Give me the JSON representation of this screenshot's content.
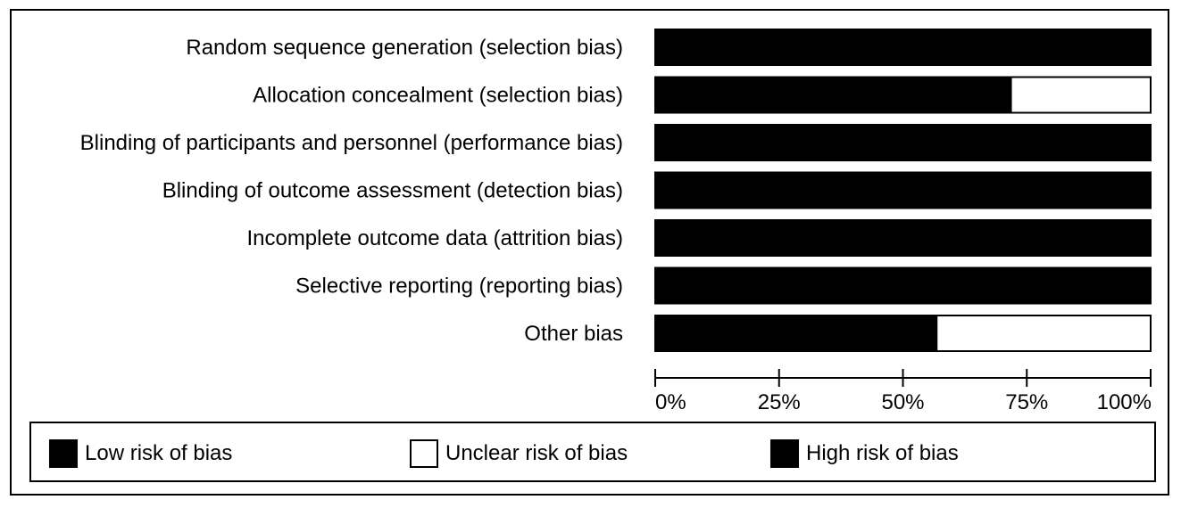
{
  "chart_data": {
    "type": "bar",
    "orientation": "horizontal",
    "stacked": true,
    "categories": [
      "Random sequence generation (selection bias)",
      "Allocation concealment (selection bias)",
      "Blinding of participants and personnel (performance bias)",
      "Blinding of outcome assessment (detection bias)",
      "Incomplete outcome data (attrition bias)",
      "Selective reporting (reporting bias)",
      "Other bias"
    ],
    "series": [
      {
        "name": "Low risk of bias",
        "color": "#000000",
        "values": [
          100,
          72,
          0,
          0,
          0,
          0,
          57
        ]
      },
      {
        "name": "Unclear risk of bias",
        "color": "#ffffff",
        "values": [
          0,
          28,
          0,
          0,
          0,
          0,
          43
        ]
      },
      {
        "name": "High risk of bias",
        "color": "#000000",
        "values": [
          0,
          0,
          100,
          100,
          100,
          100,
          0
        ]
      }
    ],
    "x_ticks": [
      "0%",
      "25%",
      "50%",
      "75%",
      "100%"
    ],
    "xlim": [
      0,
      100
    ],
    "legend_position": "bottom",
    "grid": false
  }
}
